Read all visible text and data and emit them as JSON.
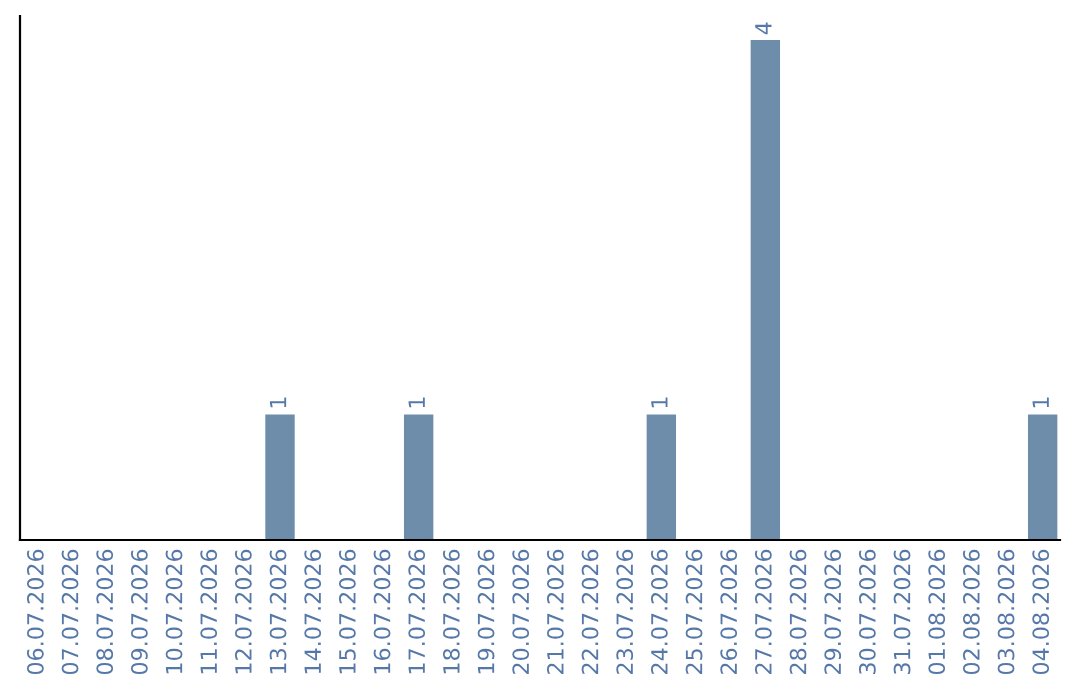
{
  "chart_data": {
    "type": "bar",
    "categories": [
      "06.07.2026",
      "07.07.2026",
      "08.07.2026",
      "09.07.2026",
      "10.07.2026",
      "11.07.2026",
      "12.07.2026",
      "13.07.2026",
      "14.07.2026",
      "15.07.2026",
      "16.07.2026",
      "17.07.2026",
      "18.07.2026",
      "19.07.2026",
      "20.07.2026",
      "21.07.2026",
      "22.07.2026",
      "23.07.2026",
      "24.07.2026",
      "25.07.2026",
      "26.07.2026",
      "27.07.2026",
      "28.07.2026",
      "29.07.2026",
      "30.07.2026",
      "31.07.2026",
      "01.08.2026",
      "02.08.2026",
      "03.08.2026",
      "04.08.2026"
    ],
    "values": [
      0,
      0,
      0,
      0,
      0,
      0,
      0,
      1,
      0,
      0,
      0,
      1,
      0,
      0,
      0,
      0,
      0,
      0,
      1,
      0,
      0,
      4,
      0,
      0,
      0,
      0,
      0,
      0,
      0,
      1
    ],
    "value_labels": [
      null,
      null,
      null,
      null,
      null,
      null,
      null,
      "1",
      null,
      null,
      null,
      "1",
      null,
      null,
      null,
      null,
      null,
      null,
      "1",
      null,
      null,
      "4",
      null,
      null,
      null,
      null,
      null,
      null,
      null,
      "1"
    ],
    "color": "#6d8dab",
    "tick_labels": "x",
    "grid": false,
    "legend": false
  }
}
